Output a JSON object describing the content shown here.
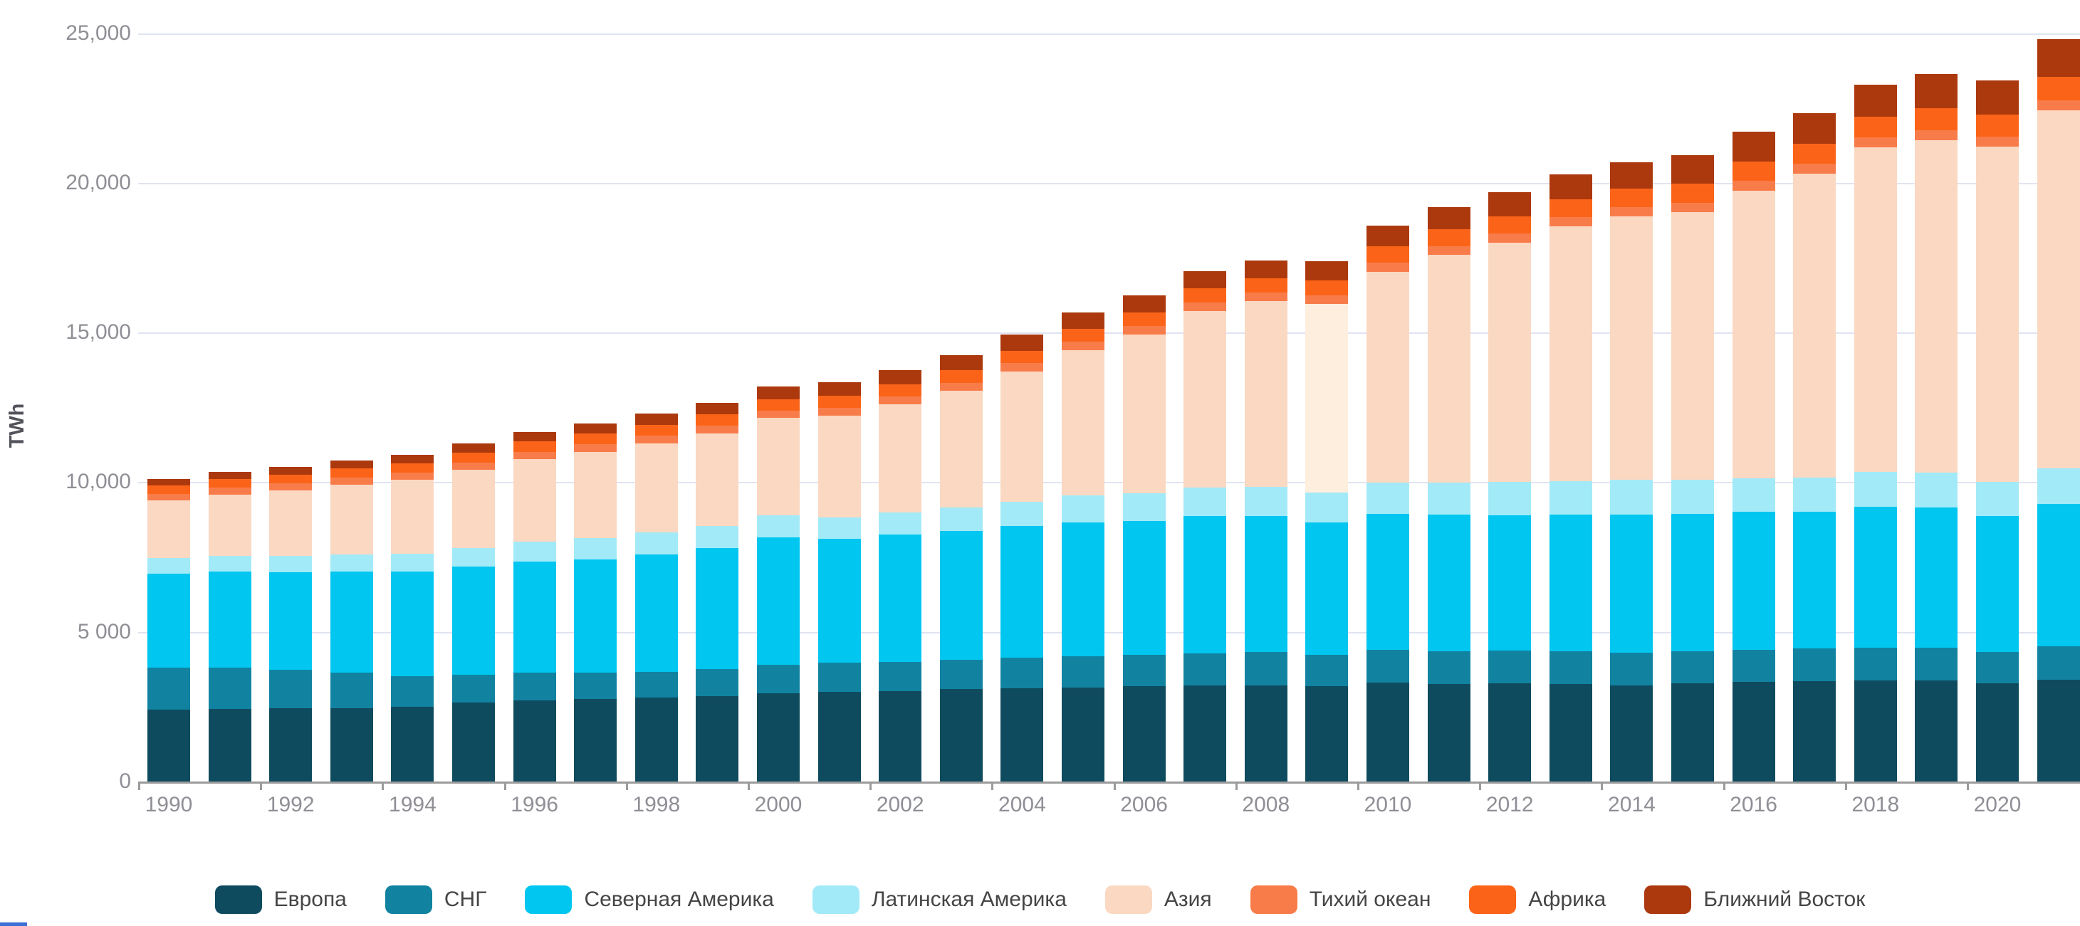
{
  "chart": {
    "unit_label": "TWh",
    "y_axis": {
      "tick_labels": [
        "25,000",
        "20,000",
        "15,000",
        "10,000",
        "5 000",
        "0"
      ],
      "tick_values": [
        25000,
        20000,
        15000,
        10000,
        5000,
        0
      ]
    },
    "x_axis": {
      "labeled_years": [
        "1990",
        "1992",
        "1994",
        "1996",
        "1998",
        "2000",
        "2002",
        "2004",
        "2006",
        "2008",
        "2010",
        "2012",
        "2014",
        "2016",
        "2018",
        "2020"
      ]
    },
    "colors": {
      "grid": "#e0e4f1",
      "axis": "#9b9b9b",
      "axis_text": "#8f8f96",
      "unit_text": "#53535c",
      "legend_text": "#454545"
    }
  },
  "chart_data": {
    "type": "bar",
    "stacked": true,
    "title": "",
    "xlabel": "",
    "ylabel": "TWh",
    "ylim": [
      0,
      25000
    ],
    "grid": true,
    "legend_position": "bottom",
    "x": [
      1990,
      1991,
      1992,
      1993,
      1994,
      1995,
      1996,
      1997,
      1998,
      1999,
      2000,
      2001,
      2002,
      2003,
      2004,
      2005,
      2006,
      2007,
      2008,
      2009,
      2010,
      2011,
      2012,
      2013,
      2014,
      2015,
      2016,
      2017,
      2018,
      2019,
      2020,
      2021
    ],
    "series": [
      {
        "name": "Европа",
        "key": "europe",
        "color": "#0f4b5e",
        "values": [
          2400,
          2430,
          2440,
          2460,
          2500,
          2650,
          2720,
          2750,
          2800,
          2850,
          2950,
          3000,
          3020,
          3080,
          3120,
          3150,
          3180,
          3200,
          3220,
          3180,
          3300,
          3250,
          3270,
          3260,
          3220,
          3280,
          3320,
          3360,
          3370,
          3380,
          3270,
          3410
        ]
      },
      {
        "name": "СНГ",
        "key": "cis",
        "color": "#1183a1",
        "values": [
          1400,
          1380,
          1290,
          1180,
          1030,
          920,
          910,
          880,
          870,
          900,
          950,
          960,
          970,
          990,
          1010,
          1030,
          1060,
          1090,
          1100,
          1050,
          1090,
          1100,
          1110,
          1090,
          1080,
          1060,
          1070,
          1080,
          1100,
          1090,
          1060,
          1110
        ]
      },
      {
        "name": "Северная Америка",
        "key": "north-america",
        "color": "#00c6f0",
        "values": [
          3150,
          3200,
          3270,
          3380,
          3480,
          3600,
          3720,
          3800,
          3920,
          4050,
          4250,
          4150,
          4250,
          4300,
          4400,
          4480,
          4460,
          4570,
          4540,
          4430,
          4560,
          4570,
          4520,
          4560,
          4620,
          4600,
          4610,
          4560,
          4700,
          4680,
          4550,
          4750
        ]
      },
      {
        "name": "Латинская Америка",
        "key": "latin-america",
        "color": "#a3eaf8",
        "values": [
          510,
          530,
          545,
          565,
          600,
          640,
          670,
          705,
          730,
          735,
          740,
          720,
          750,
          780,
          820,
          900,
          930,
          960,
          990,
          985,
          1030,
          1070,
          1100,
          1130,
          1150,
          1130,
          1140,
          1160,
          1170,
          1180,
          1130,
          1200
        ]
      },
      {
        "name": "Азия",
        "key": "asia",
        "color": "#fbd8c2",
        "values": [
          1930,
          2050,
          2180,
          2320,
          2460,
          2600,
          2750,
          2880,
          2980,
          3100,
          3250,
          3400,
          3600,
          3900,
          4350,
          4850,
          5300,
          5900,
          6200,
          6310,
          7050,
          7600,
          8000,
          8500,
          8800,
          8950,
          9600,
          10150,
          10850,
          11100,
          11200,
          11950
        ]
      },
      {
        "name": "Тихий океан",
        "key": "pacific",
        "color": "#f87c4a",
        "values": [
          225,
          229,
          233,
          237,
          241,
          245,
          248,
          251,
          254,
          257,
          260,
          264,
          268,
          272,
          276,
          280,
          284,
          288,
          292,
          296,
          300,
          302,
          304,
          306,
          308,
          310,
          316,
          322,
          328,
          334,
          330,
          340
        ]
      },
      {
        "name": "Африка",
        "key": "africa",
        "color": "#fb6418",
        "values": [
          280,
          290,
          300,
          310,
          320,
          330,
          340,
          350,
          360,
          370,
          380,
          390,
          400,
          410,
          420,
          430,
          444,
          458,
          472,
          500,
          550,
          568,
          586,
          604,
          622,
          640,
          660,
          680,
          700,
          740,
          730,
          780
        ]
      },
      {
        "name": "Ближний Восток",
        "key": "middle-east",
        "color": "#ac390e",
        "values": [
          215,
          232,
          249,
          266,
          283,
          300,
          324,
          348,
          372,
          396,
          420,
          448,
          476,
          504,
          532,
          560,
          572,
          584,
          596,
          620,
          680,
          734,
          788,
          842,
          896,
          950,
          988,
          1026,
          1064,
          1140,
          1160,
          1250
        ]
      }
    ],
    "highlight": {
      "year": 2009,
      "series_name": "Азия",
      "series_index": 4,
      "color": "#fdeede"
    }
  },
  "legend": {
    "items": [
      {
        "label": "Европа",
        "color": "#0f4b5e"
      },
      {
        "label": "СНГ",
        "color": "#1183a1"
      },
      {
        "label": "Северная Америка",
        "color": "#00c6f0"
      },
      {
        "label": "Латинская Америка",
        "color": "#a3eaf8"
      },
      {
        "label": "Азия",
        "color": "#fbd8c2"
      },
      {
        "label": "Тихий океан",
        "color": "#f87c4a"
      },
      {
        "label": "Африка",
        "color": "#fb6418"
      },
      {
        "label": "Ближний Восток",
        "color": "#ac390e"
      }
    ]
  }
}
